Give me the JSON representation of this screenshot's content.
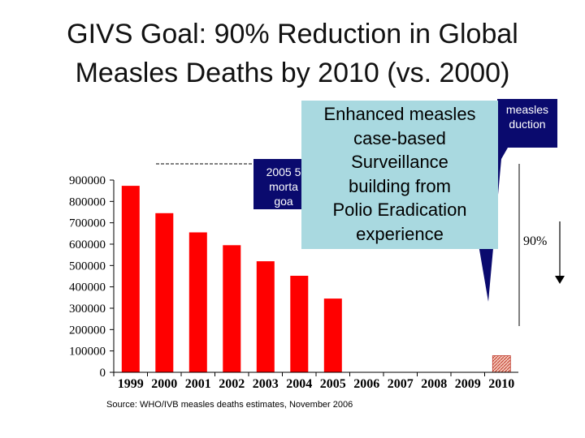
{
  "title": {
    "line1": "GIVS Goal: 90% Reduction in Global",
    "line2": "Measles Deaths by 2010 (vs. 2000)"
  },
  "chart_data": {
    "type": "bar",
    "title": "",
    "xlabel": "",
    "ylabel": "",
    "categories": [
      "1999",
      "2000",
      "2001",
      "2002",
      "2003",
      "2004",
      "2005",
      "2006",
      "2007",
      "2008",
      "2009",
      "2010"
    ],
    "values": [
      873000,
      745000,
      655000,
      595000,
      520000,
      452000,
      345000,
      null,
      null,
      null,
      null,
      78000
    ],
    "ylim": [
      0,
      900000
    ],
    "yticks": [
      "900000",
      "800000",
      "700000",
      "600000",
      "500000",
      "400000",
      "300000",
      "200000",
      "100000",
      "0"
    ],
    "grid": false,
    "bar_color": "#ff0000",
    "goal_bar_style": "hatched"
  },
  "callouts": {
    "left": {
      "line1": "2005 5",
      "line2": "morta",
      "line3": "goa"
    },
    "right": {
      "line1": "measles",
      "line2": "duction"
    }
  },
  "overlay": {
    "line1": "Enhanced measles",
    "line2": "case-based",
    "line3": "Surveillance",
    "line4": "building from",
    "line5": "Polio Eradication",
    "line6": "experience",
    "background": "#a9d9e0"
  },
  "annotation": {
    "reduction_label": "90%"
  },
  "source": "Source: WHO/IVB measles deaths estimates, November 2006",
  "colors": {
    "callout": "#0a0a6e",
    "bars": "#ff0000"
  }
}
